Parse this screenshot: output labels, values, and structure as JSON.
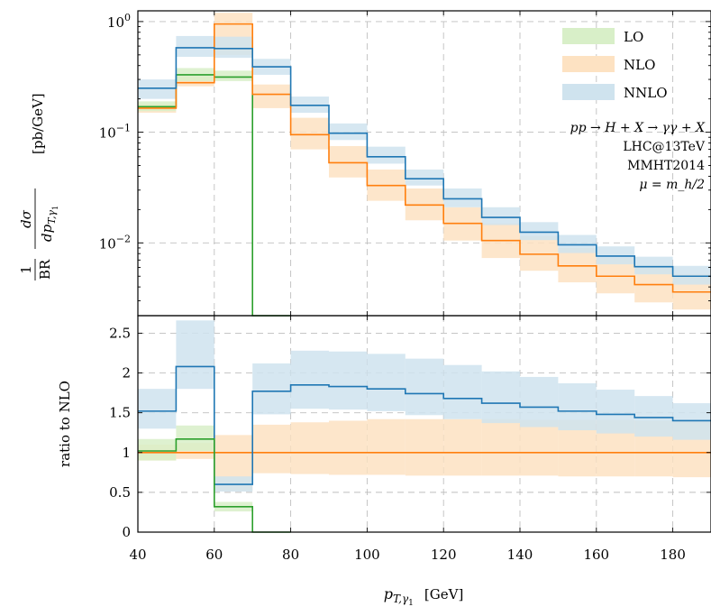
{
  "chart_data": [
    {
      "type": "line",
      "step": true,
      "yscale": "log",
      "bin_edges": [
        40,
        50,
        60,
        70,
        80,
        90,
        100,
        110,
        120,
        130,
        140,
        150,
        160,
        170,
        180,
        190
      ],
      "xlim": [
        40,
        190
      ],
      "ylim": [
        0.0022,
        1.25
      ],
      "y_ticks": [
        {
          "value": 1,
          "base": "10",
          "exp": "0"
        },
        {
          "value": 0.1,
          "base": "10",
          "exp": "−1"
        },
        {
          "value": 0.01,
          "base": "10",
          "exp": "−2"
        }
      ],
      "ylabel": {
        "frac1_num": "1",
        "frac1_den": "BR",
        "frac2_num": "dσ",
        "frac2_den": "dp",
        "frac2_den_sub": "T,γ",
        "frac2_den_subsub": "1",
        "unit": "[pb/GeV]"
      },
      "legend": [
        {
          "key": "LO",
          "label": "LO",
          "color": "#2ca02c",
          "band": "#d8efc8"
        },
        {
          "key": "NLO",
          "label": "NLO",
          "color": "#ff7f0e",
          "band": "#fde2c2"
        },
        {
          "key": "NNLO",
          "label": "NNLO",
          "color": "#1f77b4",
          "band": "#cfe3ee"
        }
      ],
      "annotations": {
        "process": "pp → H + X → γγ + X",
        "collider": "LHC@13TeV",
        "pdf": "MMHT2014",
        "scale": "μ = m_h/2"
      },
      "series": [
        {
          "name": "LO",
          "values": [
            0.17,
            0.33,
            0.315,
            0
          ],
          "band_low": [
            0.155,
            0.29,
            0.29,
            0
          ],
          "band_high": [
            0.19,
            0.38,
            0.36,
            0
          ]
        },
        {
          "name": "NLO",
          "values": [
            0.165,
            0.28,
            0.95,
            0.22,
            0.095,
            0.053,
            0.033,
            0.022,
            0.015,
            0.0105,
            0.0079,
            0.0062,
            0.005,
            0.0042,
            0.0036
          ],
          "band_low": [
            0.15,
            0.26,
            0.5,
            0.165,
            0.07,
            0.039,
            0.024,
            0.016,
            0.0105,
            0.0073,
            0.0056,
            0.0044,
            0.0035,
            0.0029,
            0.0025
          ],
          "band_high": [
            0.18,
            0.32,
            1.2,
            0.27,
            0.135,
            0.075,
            0.046,
            0.031,
            0.021,
            0.015,
            0.0115,
            0.009,
            0.0073,
            0.006,
            0.0052
          ]
        },
        {
          "name": "NNLO",
          "values": [
            0.25,
            0.58,
            0.57,
            0.39,
            0.175,
            0.098,
            0.06,
            0.038,
            0.025,
            0.017,
            0.0125,
            0.0096,
            0.0076,
            0.0061,
            0.005
          ],
          "band_low": [
            0.2,
            0.48,
            0.47,
            0.33,
            0.15,
            0.085,
            0.052,
            0.033,
            0.021,
            0.0145,
            0.0106,
            0.0081,
            0.0064,
            0.0052,
            0.0042
          ],
          "band_high": [
            0.3,
            0.74,
            0.73,
            0.46,
            0.21,
            0.12,
            0.074,
            0.046,
            0.031,
            0.021,
            0.0154,
            0.0118,
            0.0093,
            0.0075,
            0.0062
          ]
        }
      ]
    },
    {
      "type": "line",
      "step": true,
      "bin_edges": [
        40,
        50,
        60,
        70,
        80,
        90,
        100,
        110,
        120,
        130,
        140,
        150,
        160,
        170,
        180,
        190
      ],
      "xlim": [
        40,
        190
      ],
      "ylim": [
        0,
        2.72
      ],
      "xlabel": {
        "main": "p",
        "sub": "T,γ",
        "subsub": "1",
        "unit": "[GeV]"
      },
      "ylabel": "ratio to NLO",
      "x_ticks": [
        "40",
        "60",
        "80",
        "100",
        "120",
        "140",
        "160",
        "180"
      ],
      "y_ticks": [
        "0",
        "0.5",
        "1",
        "1.5",
        "2",
        "2.5"
      ],
      "series": [
        {
          "name": "LO",
          "values": [
            1.02,
            1.17,
            0.32,
            0
          ],
          "band_low": [
            0.9,
            1.02,
            0.26,
            0
          ],
          "band_high": [
            1.17,
            1.34,
            0.38,
            0
          ]
        },
        {
          "name": "NLO",
          "values": [
            1,
            1,
            1,
            1,
            1,
            1,
            1,
            1,
            1,
            1,
            1,
            1,
            1,
            1,
            1
          ],
          "band_low": [
            0.9,
            0.92,
            0.52,
            0.74,
            0.73,
            0.72,
            0.72,
            0.71,
            0.71,
            0.71,
            0.71,
            0.7,
            0.7,
            0.7,
            0.69
          ],
          "band_high": [
            1.1,
            1.12,
            1.22,
            1.35,
            1.38,
            1.4,
            1.42,
            1.42,
            1.42,
            1.42,
            1.41,
            1.41,
            1.41,
            1.4,
            1.4
          ]
        },
        {
          "name": "NNLO",
          "values": [
            1.52,
            2.08,
            0.6,
            1.77,
            1.85,
            1.83,
            1.8,
            1.74,
            1.68,
            1.62,
            1.57,
            1.52,
            1.48,
            1.44,
            1.4
          ],
          "band_low": [
            1.3,
            1.8,
            0.51,
            1.48,
            1.55,
            1.54,
            1.52,
            1.47,
            1.42,
            1.37,
            1.32,
            1.28,
            1.24,
            1.2,
            1.16
          ],
          "band_high": [
            1.8,
            2.66,
            0.7,
            2.12,
            2.28,
            2.27,
            2.24,
            2.18,
            2.1,
            2.02,
            1.95,
            1.87,
            1.79,
            1.71,
            1.62
          ]
        }
      ]
    }
  ]
}
